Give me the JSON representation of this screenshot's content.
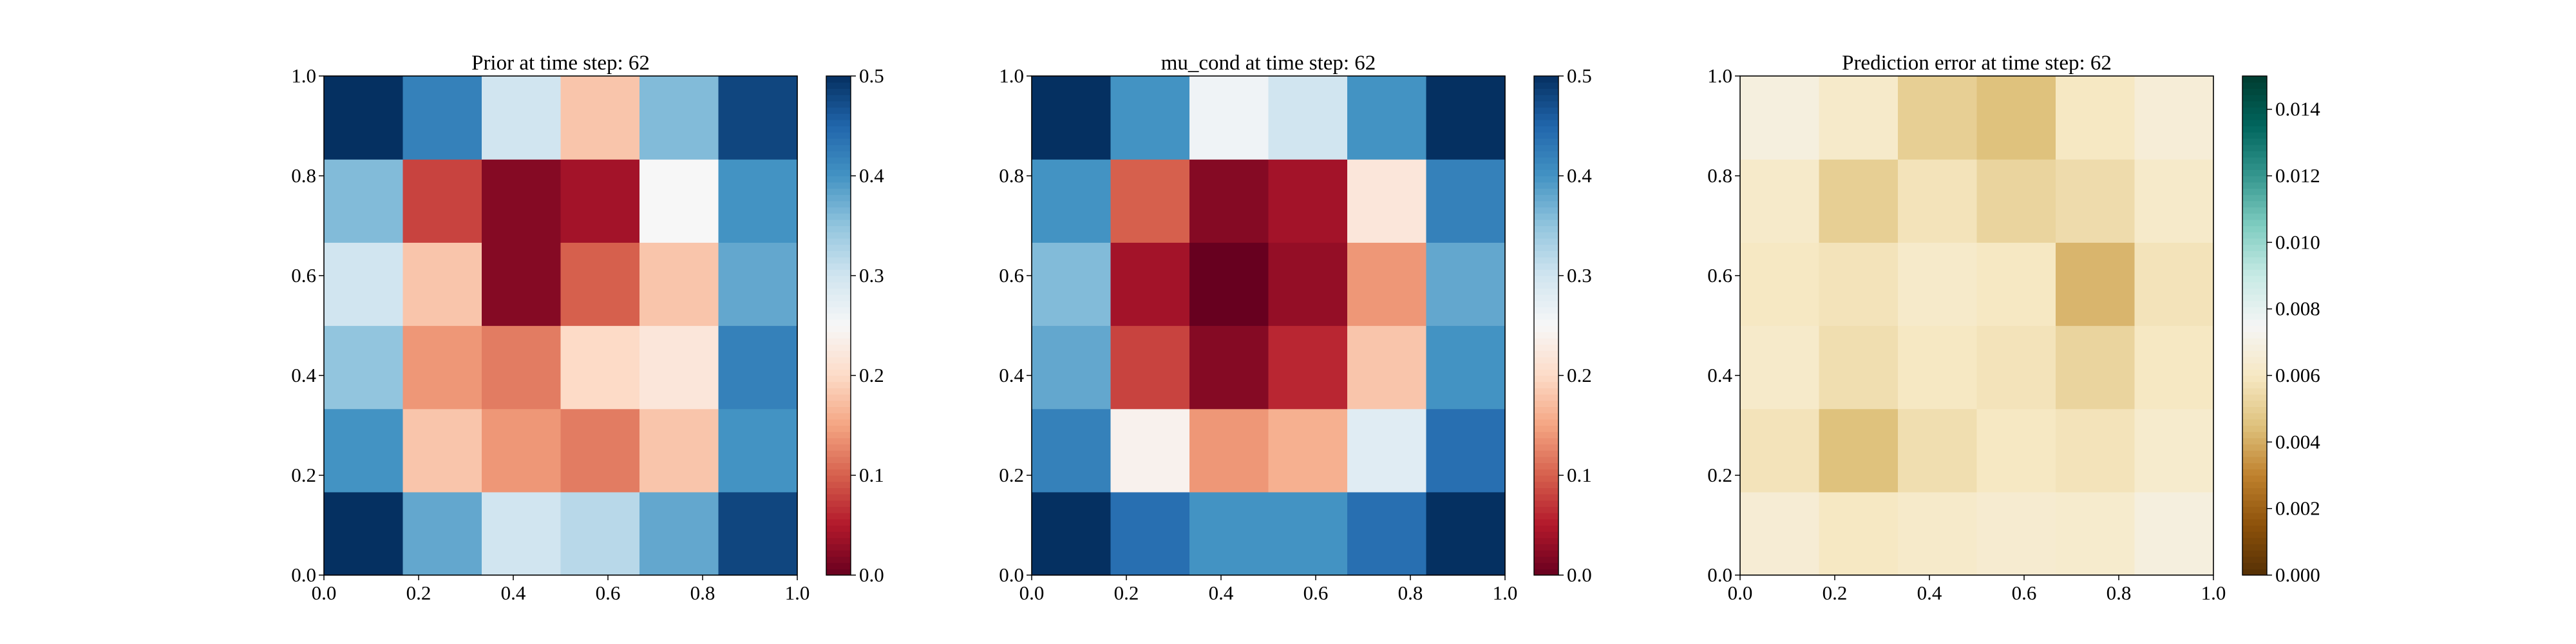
{
  "figure": {
    "panels": [
      {
        "title": "Prior at time step: 62",
        "xticks": [
          "0.0",
          "0.2",
          "0.4",
          "0.6",
          "0.8",
          "1.0"
        ],
        "yticks": [
          "0.0",
          "0.2",
          "0.4",
          "0.6",
          "0.8",
          "1.0"
        ],
        "colorbar": {
          "cmap": "RdBu",
          "ticks": [
            "0.0",
            "0.1",
            "0.2",
            "0.3",
            "0.4",
            "0.5"
          ]
        }
      },
      {
        "title": "mu_cond at time step: 62",
        "xticks": [
          "0.0",
          "0.2",
          "0.4",
          "0.6",
          "0.8",
          "1.0"
        ],
        "yticks": [
          "0.0",
          "0.2",
          "0.4",
          "0.6",
          "0.8",
          "1.0"
        ],
        "colorbar": {
          "cmap": "RdBu",
          "ticks": [
            "0.0",
            "0.1",
            "0.2",
            "0.3",
            "0.4",
            "0.5"
          ]
        }
      },
      {
        "title": "Prediction error at time step: 62",
        "xticks": [
          "0.0",
          "0.2",
          "0.4",
          "0.6",
          "0.8",
          "1.0"
        ],
        "yticks": [
          "0.0",
          "0.2",
          "0.4",
          "0.6",
          "0.8",
          "1.0"
        ],
        "colorbar": {
          "cmap": "BrBG",
          "ticks": [
            "0.000",
            "0.002",
            "0.004",
            "0.006",
            "0.008",
            "0.010",
            "0.012",
            "0.014"
          ]
        }
      }
    ]
  },
  "chart_data": [
    {
      "type": "heatmap",
      "title": "Prior at time step: 62",
      "xlim": [
        0,
        1
      ],
      "ylim": [
        0,
        1
      ],
      "colorbar_range": [
        0,
        0.5
      ],
      "colormap": "RdBu",
      "grid_resolution": 6,
      "x": [
        0.0,
        0.2,
        0.4,
        0.6,
        0.8,
        1.0
      ],
      "y": [
        0.0,
        0.2,
        0.4,
        0.6,
        0.8,
        1.0
      ],
      "values": [
        [
          0.5,
          0.38,
          0.3,
          0.32,
          0.38,
          0.48
        ],
        [
          0.4,
          0.18,
          0.14,
          0.12,
          0.18,
          0.4
        ],
        [
          0.35,
          0.14,
          0.12,
          0.2,
          0.22,
          0.42
        ],
        [
          0.3,
          0.18,
          0.02,
          0.1,
          0.18,
          0.38
        ],
        [
          0.36,
          0.08,
          0.02,
          0.04,
          0.25,
          0.4
        ],
        [
          0.5,
          0.42,
          0.3,
          0.18,
          0.36,
          0.48
        ]
      ]
    },
    {
      "type": "heatmap",
      "title": "mu_cond at time step: 62",
      "xlim": [
        0,
        1
      ],
      "ylim": [
        0,
        1
      ],
      "colorbar_range": [
        0,
        0.5
      ],
      "colormap": "RdBu",
      "grid_resolution": 6,
      "x": [
        0.0,
        0.2,
        0.4,
        0.6,
        0.8,
        1.0
      ],
      "y": [
        0.0,
        0.2,
        0.4,
        0.6,
        0.8,
        1.0
      ],
      "values": [
        [
          0.5,
          0.44,
          0.4,
          0.4,
          0.44,
          0.5
        ],
        [
          0.42,
          0.24,
          0.14,
          0.16,
          0.28,
          0.44
        ],
        [
          0.38,
          0.08,
          0.02,
          0.06,
          0.18,
          0.4
        ],
        [
          0.36,
          0.04,
          0.0,
          0.03,
          0.14,
          0.38
        ],
        [
          0.4,
          0.1,
          0.02,
          0.04,
          0.22,
          0.42
        ],
        [
          0.5,
          0.4,
          0.26,
          0.3,
          0.4,
          0.5
        ]
      ]
    },
    {
      "type": "heatmap",
      "title": "Prediction error at time step: 62",
      "xlim": [
        0,
        1
      ],
      "ylim": [
        0,
        1
      ],
      "colorbar_range": [
        0,
        0.015
      ],
      "colormap": "BrBG",
      "grid_resolution": 6,
      "x": [
        0.0,
        0.2,
        0.4,
        0.6,
        0.8,
        1.0
      ],
      "y": [
        0.0,
        0.2,
        0.4,
        0.6,
        0.8,
        1.0
      ],
      "values": [
        [
          0.0065,
          0.006,
          0.0062,
          0.0064,
          0.0063,
          0.0068
        ],
        [
          0.0058,
          0.0045,
          0.0056,
          0.006,
          0.0058,
          0.0063
        ],
        [
          0.0062,
          0.0056,
          0.006,
          0.0058,
          0.0052,
          0.006
        ],
        [
          0.006,
          0.0058,
          0.0062,
          0.006,
          0.0042,
          0.0058
        ],
        [
          0.0062,
          0.005,
          0.0058,
          0.0052,
          0.0055,
          0.0062
        ],
        [
          0.0068,
          0.0062,
          0.005,
          0.0045,
          0.006,
          0.0066
        ]
      ]
    }
  ]
}
